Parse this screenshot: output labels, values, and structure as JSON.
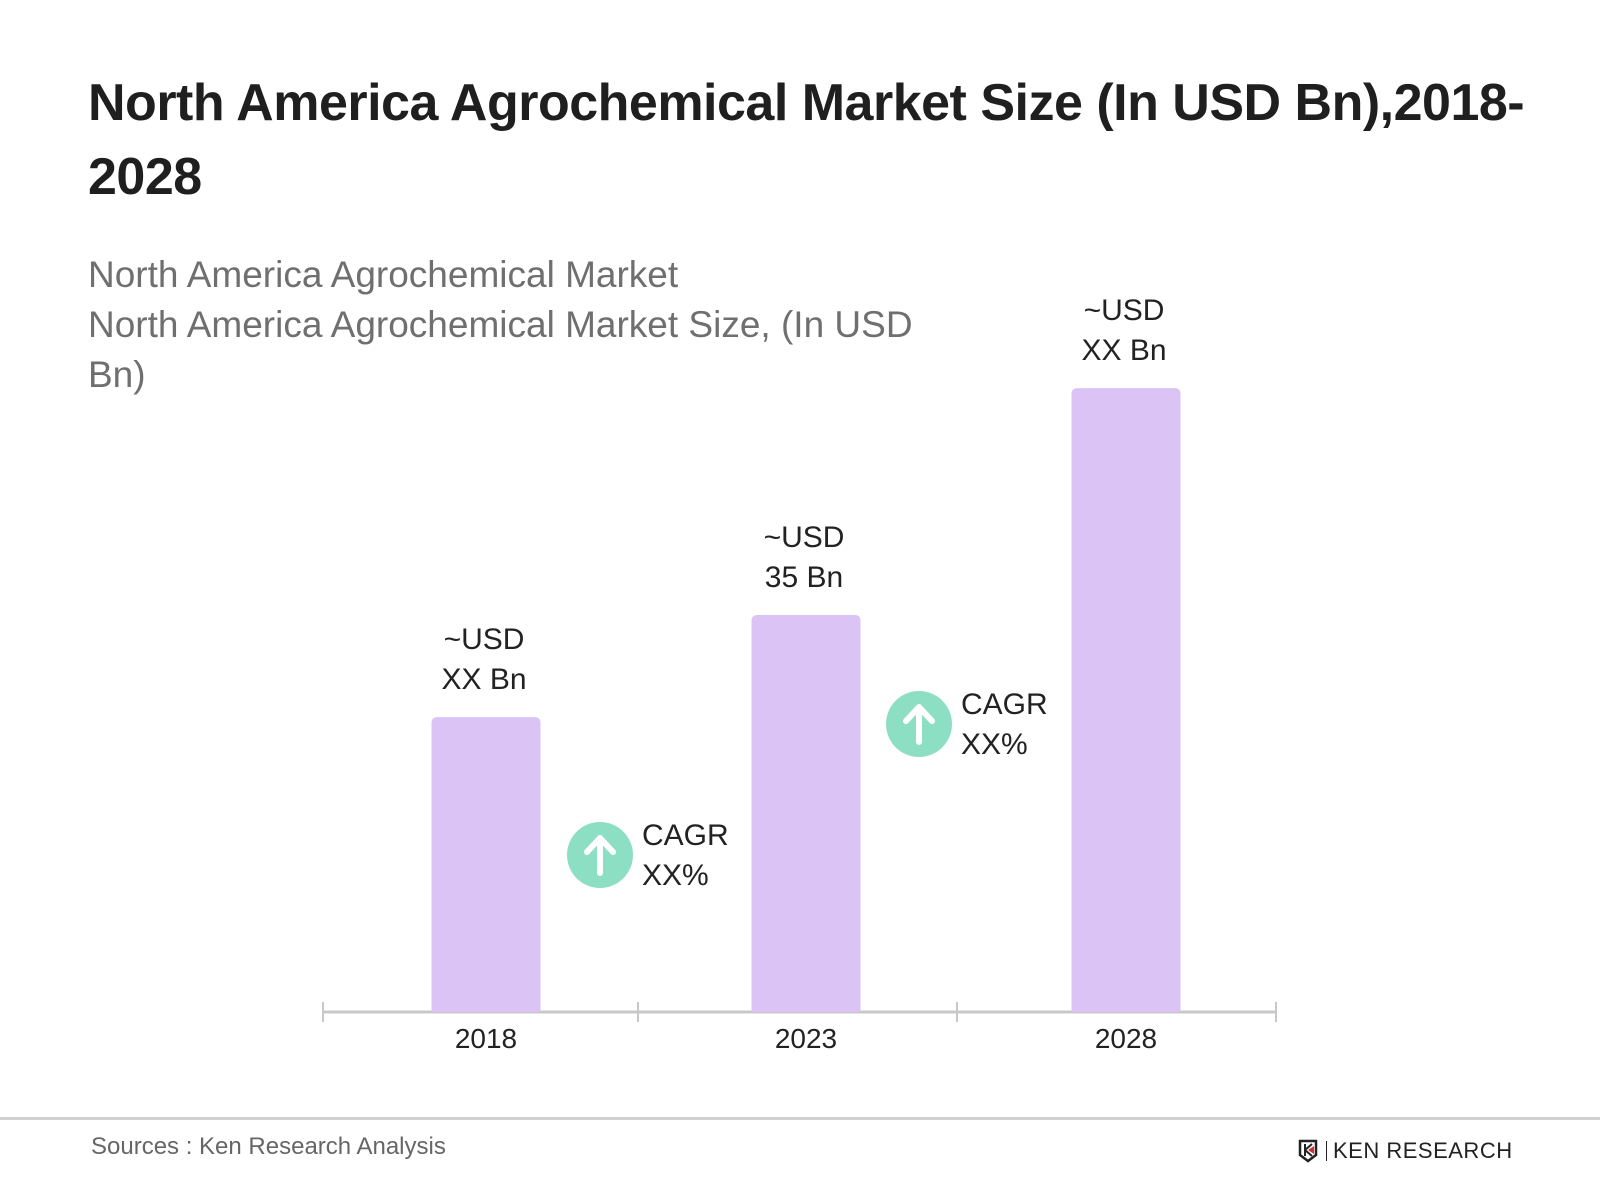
{
  "header": {
    "title": "North America Agrochemical Market Size (In USD Bn),2018-2028",
    "subtitle_line1": "North America Agrochemical Market",
    "subtitle_line2": "North America Agrochemical Market Size, (In USD Bn)"
  },
  "chart_data": {
    "type": "bar",
    "categories": [
      "2018",
      "2023",
      "2028"
    ],
    "values": [
      26,
      35,
      55
    ],
    "data_labels": [
      [
        "~USD",
        "XX Bn"
      ],
      [
        "~USD",
        "35 Bn"
      ],
      [
        "~USD",
        "XX Bn"
      ]
    ],
    "annotations": [
      {
        "label": [
          "CAGR",
          "XX%"
        ],
        "between": [
          "2018",
          "2023"
        ],
        "icon": "arrow-up-icon"
      },
      {
        "label": [
          "CAGR",
          "XX%"
        ],
        "between": [
          "2023",
          "2028"
        ],
        "icon": "arrow-up-icon"
      }
    ],
    "bar_color": "#dcc3f5",
    "badge_color": "#8ddfc4",
    "axis_color": "#c8c8c8",
    "grid": false,
    "yaxis_visible": false
  },
  "footer": {
    "source": "Sources : Ken Research Analysis",
    "logo_text": "KEN RESEARCH"
  }
}
